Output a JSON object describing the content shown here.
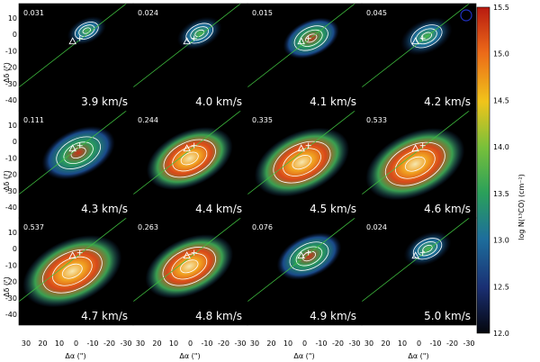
{
  "panels": [
    {
      "peak": "0.031",
      "velocity": "3.9 km/s",
      "fill": 0.15
    },
    {
      "peak": "0.024",
      "velocity": "4.0 km/s",
      "fill": 0.22
    },
    {
      "peak": "0.015",
      "velocity": "4.1 km/s",
      "fill": 0.35
    },
    {
      "peak": "0.045",
      "velocity": "4.2 km/s",
      "fill": 0.3
    },
    {
      "peak": "0.111",
      "velocity": "4.3 km/s",
      "fill": 0.55
    },
    {
      "peak": "0.244",
      "velocity": "4.4 km/s",
      "fill": 0.7
    },
    {
      "peak": "0.335",
      "velocity": "4.5 km/s",
      "fill": 0.8
    },
    {
      "peak": "0.533",
      "velocity": "4.6 km/s",
      "fill": 0.85
    },
    {
      "peak": "0.537",
      "velocity": "4.7 km/s",
      "fill": 0.85
    },
    {
      "peak": "0.263",
      "velocity": "4.8 km/s",
      "fill": 0.72
    },
    {
      "peak": "0.076",
      "velocity": "4.9 km/s",
      "fill": 0.45
    },
    {
      "peak": "0.024",
      "velocity": "5.0 km/s",
      "fill": 0.25
    }
  ],
  "yaxis": {
    "label": "Δδ (\")",
    "ticks": [
      "10",
      "0",
      "-10",
      "-20",
      "-30",
      "-40"
    ]
  },
  "xaxis": {
    "label": "Δα (\")",
    "ticks": [
      "30",
      "20",
      "10",
      "0",
      "-10",
      "-20",
      "-30"
    ]
  },
  "colorbar": {
    "label": "log N(¹³CO) (cm⁻²)",
    "ticks": [
      "15.5",
      "15.0",
      "14.5",
      "14.0",
      "13.5",
      "13.0",
      "12.5",
      "12.0"
    ],
    "min": 12.0,
    "max": 15.5,
    "colors": [
      "#04060c",
      "#1a2f73",
      "#1d6e9c",
      "#2aa05a",
      "#78c03a",
      "#f0c41a",
      "#ec6a18",
      "#b81a10"
    ]
  }
}
